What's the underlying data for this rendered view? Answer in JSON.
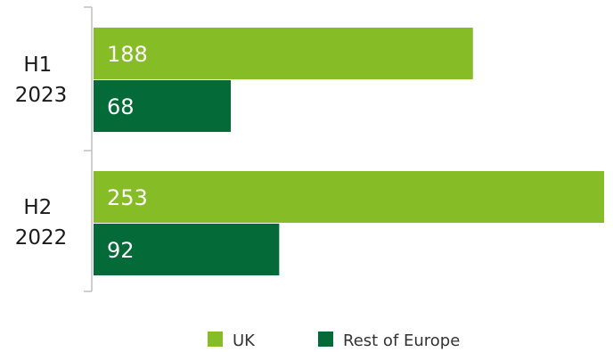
{
  "chart_data": {
    "type": "bar",
    "orientation": "horizontal",
    "categories": [
      {
        "line1": "H1",
        "line2": "2023"
      },
      {
        "line1": "H2",
        "line2": "2022"
      }
    ],
    "series": [
      {
        "name": "UK",
        "values": [
          188,
          253
        ],
        "color": "#86bc25"
      },
      {
        "name": "Rest of Europe",
        "values": [
          68,
          92
        ],
        "color": "#046a38"
      }
    ],
    "data_labels": true,
    "xlim": [
      0,
      253
    ],
    "grid": false,
    "legend": "bottom"
  }
}
